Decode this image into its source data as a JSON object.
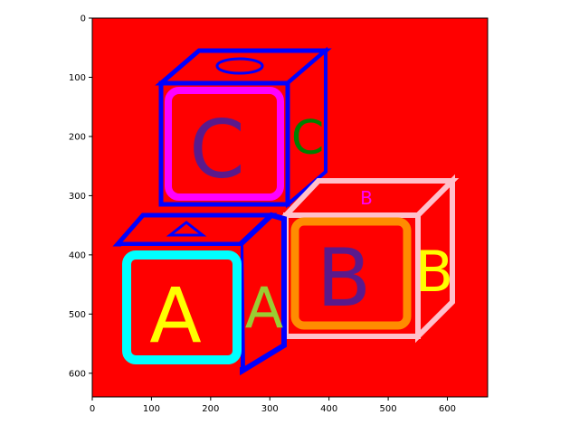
{
  "chart_data": {
    "type": "image",
    "title": "",
    "xlabel": "",
    "ylabel": "",
    "xlim": [
      0,
      668
    ],
    "ylim": [
      640,
      0
    ],
    "x_ticks": [
      0,
      100,
      200,
      300,
      400,
      500,
      600
    ],
    "y_ticks": [
      0,
      100,
      200,
      300,
      400,
      500,
      600
    ],
    "x_tick_labels": [
      "0",
      "100",
      "200",
      "300",
      "400",
      "500",
      "600"
    ],
    "y_tick_labels": [
      "0",
      "100",
      "200",
      "300",
      "400",
      "500",
      "600"
    ],
    "grid": false,
    "legend": "none",
    "image_content": {
      "background_color": "#ff0000",
      "blocks": [
        {
          "letter": "C",
          "frame_color": "#ff00ff",
          "letter_color": "#5a1a8c",
          "edge_color": "#0000ff",
          "side_letter_color": "#008000"
        },
        {
          "letter": "A",
          "frame_color": "#00ffff",
          "letter_color": "#ffff00",
          "edge_color": "#0000ff",
          "side_letter_color": "#9acd32"
        },
        {
          "letter": "B",
          "frame_color": "#ff8c00",
          "letter_color": "#5a1a8c",
          "edge_color": "#ffc0cb",
          "side_letter_color": "#ffff00"
        }
      ]
    }
  }
}
